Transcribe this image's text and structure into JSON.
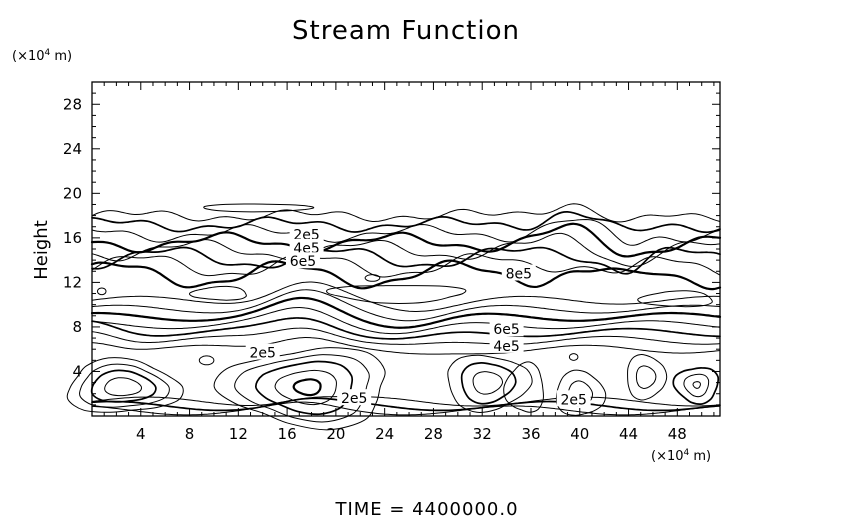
{
  "chart_data": {
    "type": "contour",
    "title": "Stream Function",
    "ylabel": "Height",
    "x_unit": "(×10",
    "x_unit_exp": "4",
    "x_unit_tail": " m)",
    "y_unit": "(×10",
    "y_unit_exp": "4",
    "y_unit_tail": " m)",
    "xlim": [
      0,
      51.5
    ],
    "ylim": [
      0,
      30
    ],
    "x_ticks": [
      4,
      8,
      12,
      16,
      20,
      24,
      28,
      32,
      36,
      40,
      44,
      48
    ],
    "y_ticks": [
      4,
      8,
      12,
      16,
      20,
      24,
      28
    ],
    "grid": false,
    "contour_labels": [
      {
        "text": "2e5",
        "x": 17.6,
        "y": 16.3
      },
      {
        "text": "4e5",
        "x": 17.6,
        "y": 15.1
      },
      {
        "text": "6e5",
        "x": 17.3,
        "y": 13.9
      },
      {
        "text": "8e5",
        "x": 35.0,
        "y": 12.8
      },
      {
        "text": "6e5",
        "x": 34.0,
        "y": 7.8
      },
      {
        "text": "4e5",
        "x": 34.0,
        "y": 6.3
      },
      {
        "text": "2e5",
        "x": 14.0,
        "y": 5.7
      },
      {
        "text": "2e5",
        "x": 21.5,
        "y": 1.6
      },
      {
        "text": "2e5",
        "x": 39.5,
        "y": 1.5
      }
    ]
  },
  "footer": "TIME  =  4400000.0"
}
